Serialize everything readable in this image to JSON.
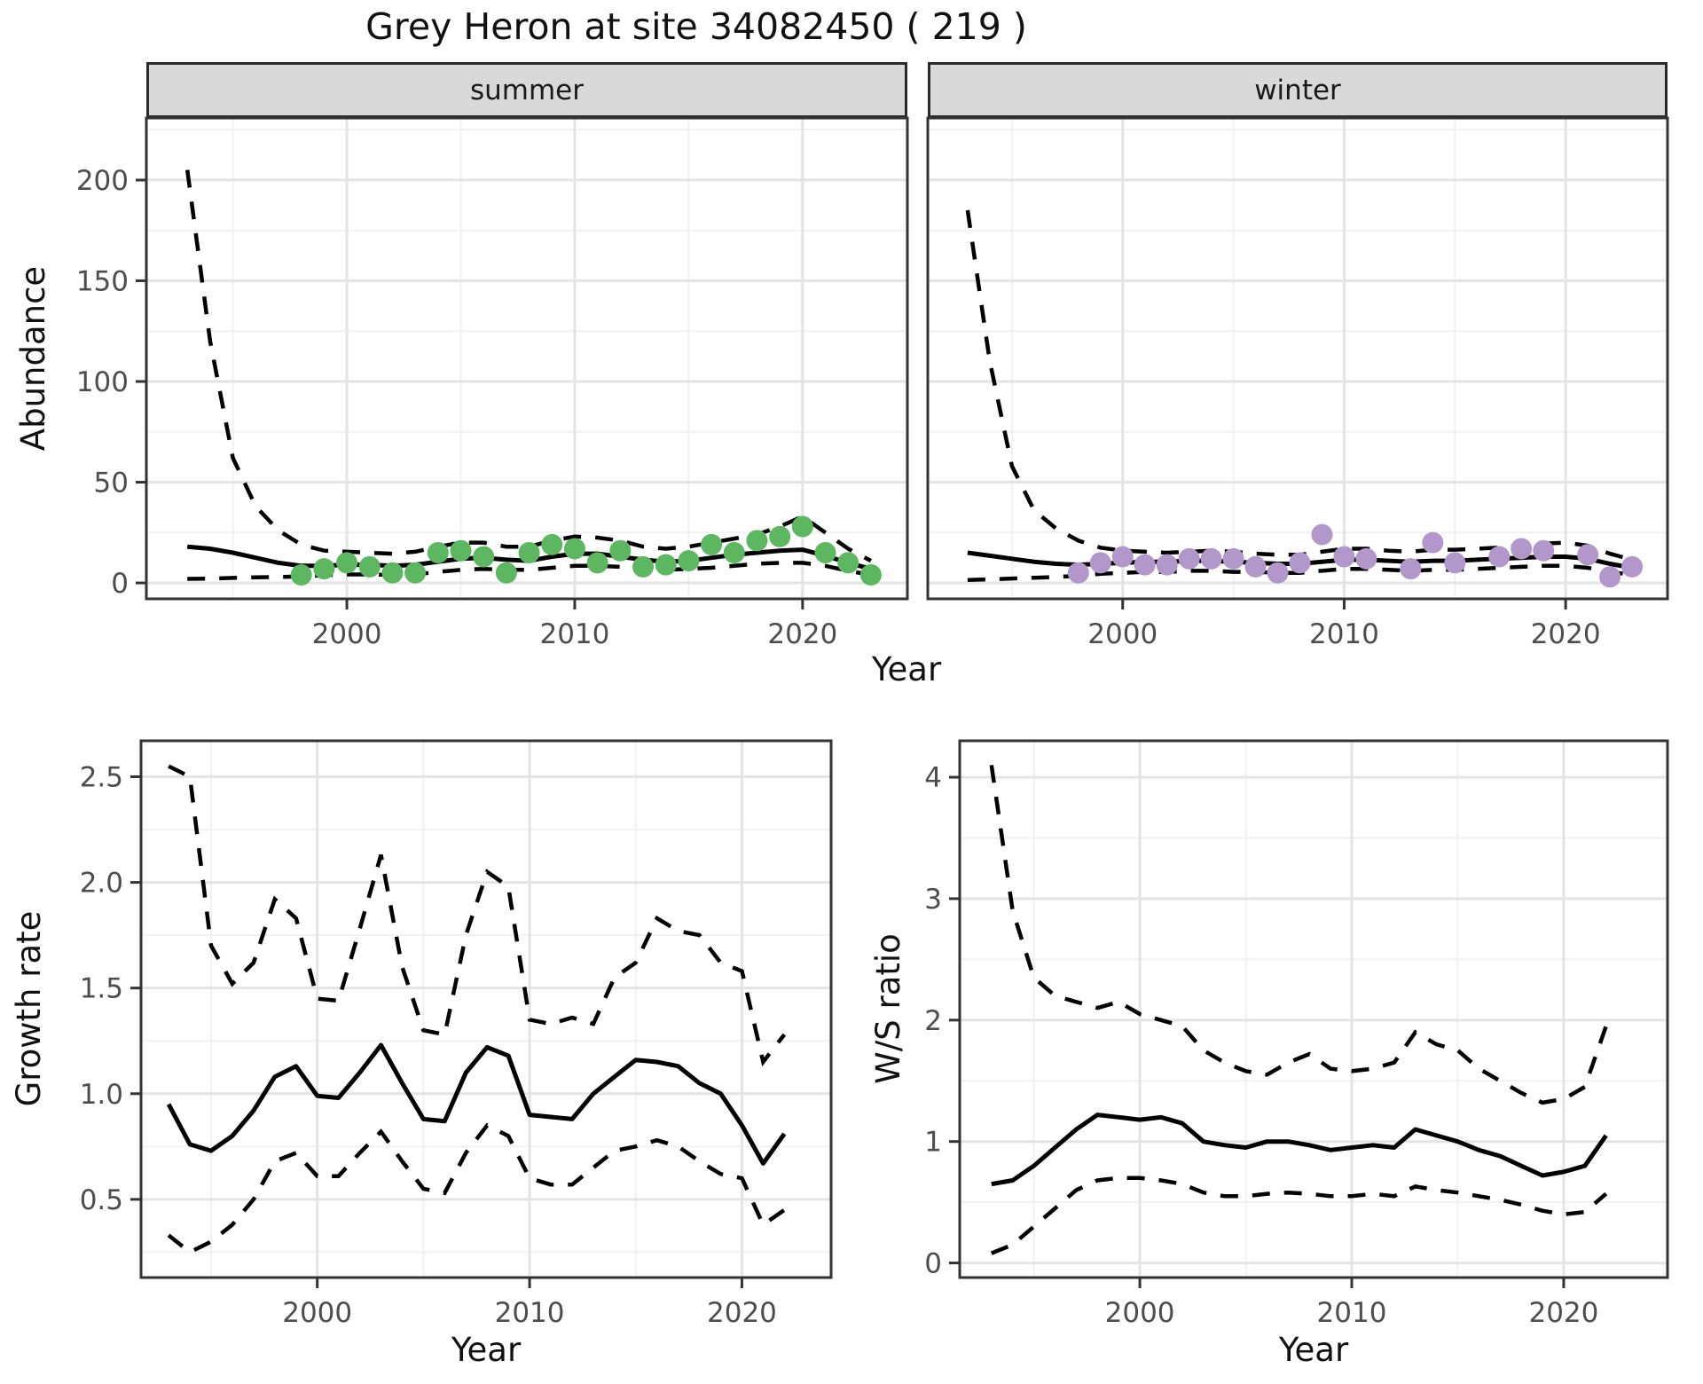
{
  "title": "Grey Heron at site 34082450 ( 219 )",
  "facets": {
    "summer": "summer",
    "winter": "winter"
  },
  "axes": {
    "top_y_label": "Abundance",
    "top_x_label": "Year",
    "bottom_left_y_label": "Growth rate",
    "bottom_left_x_label": "Year",
    "bottom_right_y_label": "W/S ratio",
    "bottom_right_x_label": "Year"
  },
  "colors": {
    "summer_point": "#5db660",
    "winter_point": "#b297cb",
    "line": "#000000",
    "panel_bg": "#ffffff",
    "grid_minor": "#f1f1f1",
    "grid_major": "#e4e4e4",
    "border": "#333333",
    "tick_mark": "#333333",
    "tick_text": "#4d4d4d",
    "strip_fill": "#d9d9d9"
  },
  "chart_data": [
    {
      "id": "summer",
      "type": "line",
      "facet": "summer",
      "x_domain": [
        1991.2,
        2024.6
      ],
      "y_domain": [
        -7.9,
        230.8
      ],
      "x_ticks": [
        2000,
        2010,
        2020
      ],
      "x_tick_labels": [
        "2000",
        "2010",
        "2020"
      ],
      "x_minor": [
        1995,
        2005,
        2015
      ],
      "y_ticks": [
        0,
        50,
        100,
        150,
        200
      ],
      "y_tick_labels": [
        "0",
        "50",
        "100",
        "150",
        "200"
      ],
      "y_minor": [
        25,
        75,
        125,
        175,
        225
      ],
      "series": {
        "years": [
          1993,
          1994,
          1995,
          1996,
          1997,
          1998,
          1999,
          2000,
          2001,
          2002,
          2003,
          2004,
          2005,
          2006,
          2007,
          2008,
          2009,
          2010,
          2011,
          2012,
          2013,
          2014,
          2015,
          2016,
          2017,
          2018,
          2019,
          2020,
          2021,
          2022,
          2023
        ],
        "fit": [
          18,
          17,
          15,
          12.5,
          10,
          8.5,
          8.5,
          9,
          9,
          8.5,
          9,
          10.5,
          12,
          12.5,
          11.5,
          11,
          13,
          14.5,
          14.5,
          13,
          11.5,
          10.5,
          11,
          12.5,
          14,
          15,
          16,
          16.5,
          13.5,
          10,
          7
        ],
        "upper": [
          205,
          120,
          62,
          38,
          26,
          19,
          16,
          15.5,
          15,
          14.5,
          15.5,
          18,
          20,
          20,
          18,
          18,
          21,
          23,
          22.5,
          21,
          18,
          17,
          18,
          20,
          22,
          24,
          28,
          33,
          25,
          17,
          11
        ],
        "lower": [
          2,
          2.2,
          2.5,
          2.8,
          3,
          3.2,
          3.8,
          4.2,
          4.2,
          4,
          4.2,
          5.5,
          6.5,
          7,
          6.5,
          6.5,
          7.5,
          8.5,
          8.5,
          8,
          7,
          6.5,
          7,
          7.5,
          8.5,
          9.5,
          10,
          10,
          8.5,
          6,
          4
        ]
      },
      "points": {
        "years": [
          1998,
          1999,
          2000,
          2001,
          2002,
          2003,
          2004,
          2005,
          2006,
          2007,
          2008,
          2009,
          2010,
          2011,
          2012,
          2013,
          2014,
          2015,
          2016,
          2017,
          2018,
          2019,
          2020,
          2021,
          2022,
          2023
        ],
        "values": [
          4,
          7,
          10,
          8,
          5,
          5,
          15,
          16,
          13,
          5,
          15,
          19,
          17,
          10,
          16,
          8,
          9,
          11,
          19,
          15,
          21,
          23,
          28,
          15,
          10,
          4
        ]
      },
      "point_color": "#5db660"
    },
    {
      "id": "winter",
      "type": "line",
      "facet": "winter",
      "x_domain": [
        1991.2,
        2024.6
      ],
      "y_domain": [
        -7.9,
        230.8
      ],
      "x_ticks": [
        2000,
        2010,
        2020
      ],
      "x_tick_labels": [
        "2000",
        "2010",
        "2020"
      ],
      "x_minor": [
        1995,
        2005,
        2015
      ],
      "y_ticks": [
        0,
        50,
        100,
        150,
        200
      ],
      "y_minor": [
        25,
        75,
        125,
        175,
        225
      ],
      "series": {
        "years": [
          1993,
          1994,
          1995,
          1996,
          1997,
          1998,
          1999,
          2000,
          2001,
          2002,
          2003,
          2004,
          2005,
          2006,
          2007,
          2008,
          2009,
          2010,
          2011,
          2012,
          2013,
          2014,
          2015,
          2016,
          2017,
          2018,
          2019,
          2020,
          2021,
          2022,
          2023
        ],
        "fit": [
          15,
          13.5,
          12,
          10.5,
          9.5,
          9,
          9.5,
          10,
          10.5,
          10.5,
          11,
          11,
          10.5,
          10,
          9.5,
          9.5,
          10.5,
          11.5,
          11.5,
          11,
          10.5,
          11,
          11,
          11.5,
          12,
          12.5,
          13,
          13,
          12,
          9.5,
          7.5
        ],
        "upper": [
          185,
          110,
          58,
          36,
          27,
          21,
          17.5,
          16,
          15.5,
          15,
          15.5,
          16,
          15.5,
          14.5,
          14,
          14,
          15.5,
          17,
          17,
          16,
          15.5,
          16.5,
          16.5,
          17,
          17.5,
          18.5,
          19.5,
          20,
          18.5,
          14.5,
          11.5
        ],
        "lower": [
          1.5,
          1.8,
          2.2,
          2.6,
          3,
          3.5,
          4.5,
          5,
          5.5,
          5.5,
          6,
          6,
          5.5,
          5.5,
          5,
          5,
          6,
          7,
          7,
          6.5,
          6,
          6.5,
          6.5,
          7,
          7.5,
          8,
          8.5,
          8.5,
          7.5,
          5.5,
          4
        ]
      },
      "points": {
        "years": [
          1998,
          1999,
          2000,
          2001,
          2002,
          2003,
          2004,
          2005,
          2006,
          2007,
          2008,
          2009,
          2010,
          2011,
          2012,
          2013,
          2014,
          2015,
          2016,
          2017,
          2018,
          2019,
          2020,
          2021,
          2022,
          2023
        ],
        "values": [
          5,
          10,
          13,
          9,
          9,
          12,
          12,
          12,
          8,
          5,
          10,
          24,
          13,
          12,
          null,
          7,
          20,
          10,
          null,
          13,
          17,
          16,
          null,
          14,
          3,
          8
        ]
      },
      "point_color": "#b297cb"
    },
    {
      "id": "growth",
      "type": "line",
      "x_domain": [
        1991.7,
        2024.2
      ],
      "y_domain": [
        0.13,
        2.67
      ],
      "x_ticks": [
        2000,
        2010,
        2020
      ],
      "x_tick_labels": [
        "2000",
        "2010",
        "2020"
      ],
      "x_minor": [
        1995,
        2005,
        2015
      ],
      "y_ticks": [
        0.5,
        1.0,
        1.5,
        2.0,
        2.5
      ],
      "y_tick_labels": [
        "0.5",
        "1.0",
        "1.5",
        "2.0",
        "2.5"
      ],
      "y_minor": [
        0.25,
        0.75,
        1.25,
        1.75,
        2.25
      ],
      "series": {
        "years": [
          1993,
          1994,
          1995,
          1996,
          1997,
          1998,
          1999,
          2000,
          2001,
          2002,
          2003,
          2004,
          2005,
          2006,
          2007,
          2008,
          2009,
          2010,
          2011,
          2012,
          2013,
          2014,
          2015,
          2016,
          2017,
          2018,
          2019,
          2020,
          2021,
          2022
        ],
        "fit": [
          0.95,
          0.76,
          0.73,
          0.8,
          0.92,
          1.08,
          1.13,
          0.99,
          0.98,
          1.1,
          1.23,
          1.05,
          0.88,
          0.87,
          1.1,
          1.22,
          1.18,
          0.9,
          0.89,
          0.88,
          1.0,
          1.08,
          1.16,
          1.15,
          1.13,
          1.05,
          1.0,
          0.85,
          0.67,
          0.81
        ],
        "upper": [
          2.55,
          2.5,
          1.7,
          1.52,
          1.62,
          1.92,
          1.83,
          1.45,
          1.44,
          1.78,
          2.13,
          1.6,
          1.3,
          1.28,
          1.75,
          2.05,
          1.98,
          1.35,
          1.33,
          1.36,
          1.33,
          1.55,
          1.62,
          1.83,
          1.77,
          1.75,
          1.62,
          1.58,
          1.15,
          1.28
        ],
        "lower": [
          0.33,
          0.25,
          0.3,
          0.38,
          0.5,
          0.68,
          0.72,
          0.61,
          0.61,
          0.72,
          0.82,
          0.68,
          0.55,
          0.53,
          0.72,
          0.85,
          0.8,
          0.6,
          0.57,
          0.57,
          0.65,
          0.73,
          0.75,
          0.78,
          0.75,
          0.68,
          0.62,
          0.6,
          0.38,
          0.45
        ]
      },
      "point_color": null
    },
    {
      "id": "ws",
      "type": "line",
      "x_domain": [
        1991.5,
        2024.9
      ],
      "y_domain": [
        -0.12,
        4.3
      ],
      "x_ticks": [
        2000,
        2010,
        2020
      ],
      "x_tick_labels": [
        "2000",
        "2010",
        "2020"
      ],
      "x_minor": [
        1995,
        2005,
        2015
      ],
      "y_ticks": [
        0,
        1,
        2,
        3,
        4
      ],
      "y_tick_labels": [
        "0",
        "1",
        "2",
        "3",
        "4"
      ],
      "y_minor": [
        0.5,
        1.5,
        2.5,
        3.5
      ],
      "series": {
        "years": [
          1993,
          1994,
          1995,
          1996,
          1997,
          1998,
          1999,
          2000,
          2001,
          2002,
          2003,
          2004,
          2005,
          2006,
          2007,
          2008,
          2009,
          2010,
          2011,
          2012,
          2013,
          2014,
          2015,
          2016,
          2017,
          2018,
          2019,
          2020,
          2021,
          2022
        ],
        "fit": [
          0.65,
          0.68,
          0.8,
          0.95,
          1.1,
          1.22,
          1.2,
          1.18,
          1.2,
          1.15,
          1.0,
          0.97,
          0.95,
          1.0,
          1.0,
          0.97,
          0.93,
          0.95,
          0.97,
          0.95,
          1.1,
          1.05,
          1.0,
          0.93,
          0.88,
          0.8,
          0.72,
          0.75,
          0.8,
          1.05
        ],
        "upper": [
          4.1,
          2.9,
          2.35,
          2.2,
          2.15,
          2.1,
          2.15,
          2.05,
          2.0,
          1.95,
          1.75,
          1.65,
          1.58,
          1.55,
          1.65,
          1.72,
          1.6,
          1.58,
          1.6,
          1.65,
          1.9,
          1.8,
          1.75,
          1.6,
          1.5,
          1.4,
          1.32,
          1.35,
          1.45,
          1.95
        ],
        "lower": [
          0.08,
          0.15,
          0.3,
          0.45,
          0.6,
          0.68,
          0.7,
          0.7,
          0.68,
          0.65,
          0.58,
          0.55,
          0.55,
          0.57,
          0.58,
          0.57,
          0.55,
          0.55,
          0.57,
          0.55,
          0.63,
          0.6,
          0.58,
          0.55,
          0.52,
          0.48,
          0.43,
          0.4,
          0.42,
          0.57
        ]
      },
      "point_color": null
    }
  ]
}
